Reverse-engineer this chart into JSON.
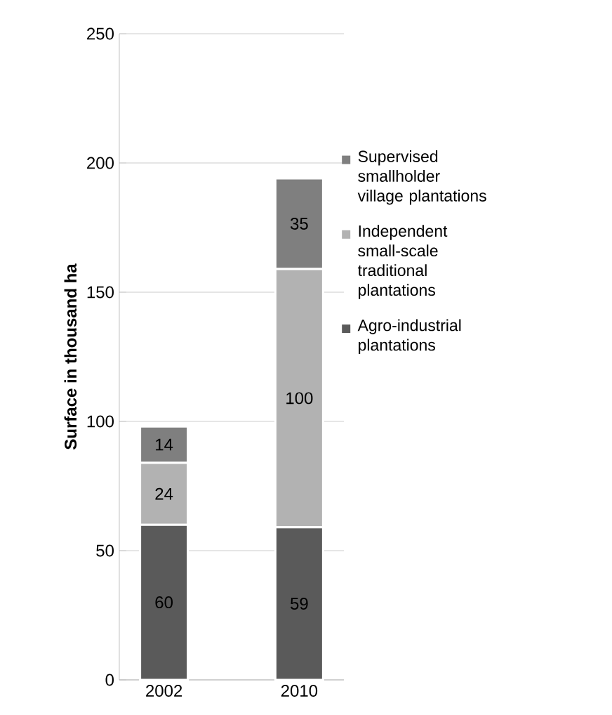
{
  "chart_data": {
    "type": "bar",
    "stacked": true,
    "ylabel": "Surface in thousand ha",
    "categories": [
      "2002",
      "2010"
    ],
    "series": [
      {
        "name": "Agro-industrial plantations",
        "color": "#5a5a5a",
        "values": [
          60,
          59
        ]
      },
      {
        "name": "Independent small-scale traditional plantations",
        "color": "#b2b2b2",
        "values": [
          24,
          100
        ]
      },
      {
        "name": "Supervised smallholder village plantations",
        "color": "#7f7f7f",
        "values": [
          14,
          35
        ]
      }
    ],
    "ylim": [
      0,
      250
    ],
    "yticks": [
      0,
      50,
      100,
      150,
      200,
      250
    ],
    "grid": "y",
    "legend": "right",
    "data_labels": true
  }
}
